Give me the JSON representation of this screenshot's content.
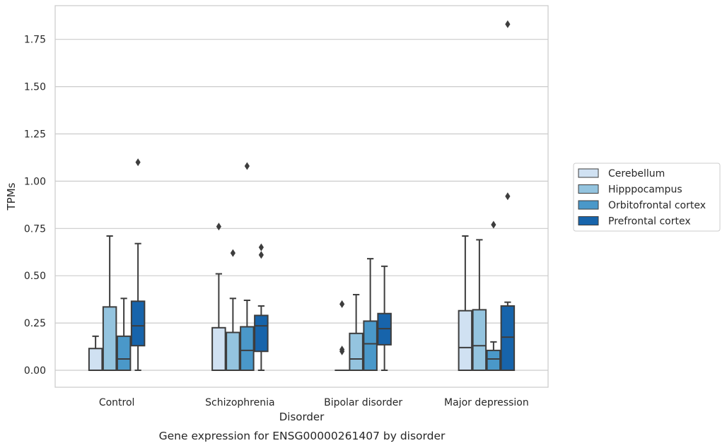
{
  "chart_data": {
    "type": "box",
    "title": "",
    "caption": "Gene expression for ENSG00000261407 by disorder",
    "xlabel": "Disorder",
    "ylabel": "TPMs",
    "ylim": [
      -0.09,
      1.92
    ],
    "yticks": [
      "0.00",
      "0.25",
      "0.50",
      "0.75",
      "1.00",
      "1.25",
      "1.50",
      "1.75"
    ],
    "grid": "horizontal",
    "legend_position": "right",
    "categories": [
      "Control",
      "Schizophrenia",
      "Bipolar disorder",
      "Major depression"
    ],
    "series": [
      {
        "name": "Cerebellum",
        "color": "#d0e1f2",
        "boxes": [
          {
            "min": 0.0,
            "q1": 0.0,
            "median": 0.0,
            "q3": 0.115,
            "max": 0.18,
            "outliers": []
          },
          {
            "min": 0.0,
            "q1": 0.0,
            "median": 0.0,
            "q3": 0.225,
            "max": 0.51,
            "outliers": [
              0.76
            ]
          },
          {
            "min": 0.0,
            "q1": 0.0,
            "median": 0.0,
            "q3": 0.0,
            "max": 0.0,
            "outliers": [
              0.35,
              0.11,
              0.1
            ]
          },
          {
            "min": 0.0,
            "q1": 0.0,
            "median": 0.12,
            "q3": 0.315,
            "max": 0.71,
            "outliers": []
          }
        ]
      },
      {
        "name": "Hipppocampus",
        "color": "#94c4df",
        "boxes": [
          {
            "min": 0.0,
            "q1": 0.0,
            "median": 0.0,
            "q3": 0.335,
            "max": 0.71,
            "outliers": []
          },
          {
            "min": 0.0,
            "q1": 0.0,
            "median": 0.0,
            "q3": 0.2,
            "max": 0.38,
            "outliers": [
              0.62
            ]
          },
          {
            "min": 0.0,
            "q1": 0.0,
            "median": 0.06,
            "q3": 0.195,
            "max": 0.4,
            "outliers": []
          },
          {
            "min": 0.0,
            "q1": 0.0,
            "median": 0.13,
            "q3": 0.32,
            "max": 0.69,
            "outliers": []
          }
        ]
      },
      {
        "name": "Orbitofrontal cortex",
        "color": "#4a98c9",
        "boxes": [
          {
            "min": 0.0,
            "q1": 0.0,
            "median": 0.06,
            "q3": 0.18,
            "max": 0.38,
            "outliers": []
          },
          {
            "min": 0.0,
            "q1": 0.0,
            "median": 0.105,
            "q3": 0.23,
            "max": 0.37,
            "outliers": [
              1.08
            ]
          },
          {
            "min": 0.0,
            "q1": 0.0,
            "median": 0.14,
            "q3": 0.26,
            "max": 0.59,
            "outliers": []
          },
          {
            "min": 0.0,
            "q1": 0.0,
            "median": 0.06,
            "q3": 0.105,
            "max": 0.15,
            "outliers": [
              0.77
            ]
          }
        ]
      },
      {
        "name": "Prefrontal cortex",
        "color": "#1764ab",
        "boxes": [
          {
            "min": 0.0,
            "q1": 0.13,
            "median": 0.235,
            "q3": 0.365,
            "max": 0.67,
            "outliers": [
              1.1
            ]
          },
          {
            "min": 0.0,
            "q1": 0.1,
            "median": 0.235,
            "q3": 0.29,
            "max": 0.34,
            "outliers": [
              0.65,
              0.61
            ]
          },
          {
            "min": 0.0,
            "q1": 0.135,
            "median": 0.22,
            "q3": 0.3,
            "max": 0.55,
            "outliers": []
          },
          {
            "min": 0.0,
            "q1": 0.0,
            "median": 0.175,
            "q3": 0.34,
            "max": 0.36,
            "outliers": [
              1.83,
              0.92
            ]
          }
        ]
      }
    ]
  }
}
